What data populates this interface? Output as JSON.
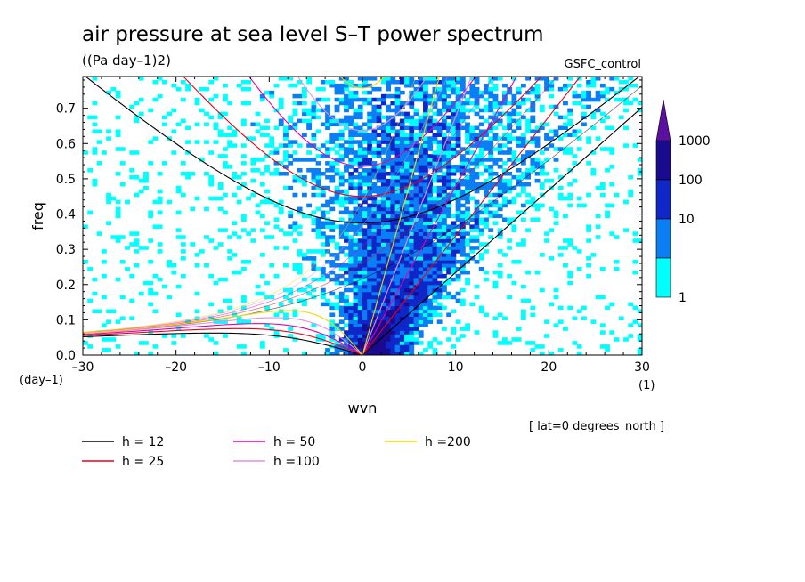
{
  "chart_data": {
    "type": "heatmap",
    "title": "air pressure at sea level S–T power spectrum",
    "units": "((Pa day–1)2)",
    "source_label": "GSFC_control",
    "xlabel": "wvn",
    "ylabel": "freq",
    "x_unit": "(1)",
    "y_unit": "(day–1)",
    "annotation": "[ lat=0 degrees_north ]",
    "xlim": [
      -30,
      30
    ],
    "ylim": [
      0,
      0.79
    ],
    "x_ticks": [
      -30,
      -20,
      -10,
      0,
      10,
      20,
      30
    ],
    "x_tick_labels": [
      "–30",
      "–20",
      "–10",
      "0",
      "10",
      "20",
      "30"
    ],
    "y_ticks": [
      0,
      0.1,
      0.2,
      0.3,
      0.4,
      0.5,
      0.6,
      0.7
    ],
    "y_tick_labels": [
      "0.0",
      "0.1",
      "0.2",
      "0.3",
      "0.4",
      "0.5",
      "0.6",
      "0.7"
    ],
    "colorbar": {
      "levels": [
        "1",
        "10",
        "100",
        "1000"
      ],
      "colors": [
        "#00ffff",
        "#0a7ff5",
        "#0f27c8",
        "#1a0a8f",
        "#5a10a0"
      ]
    },
    "legend": [
      {
        "label": "h = 12",
        "color": "#000000"
      },
      {
        "label": "h = 25",
        "color": "#e8001a"
      },
      {
        "label": "h = 50",
        "color": "#e000b0"
      },
      {
        "label": "h =100",
        "color": "#e090e0"
      },
      {
        "label": "h =200",
        "color": "#f0d800"
      }
    ],
    "dispersion_curves": {
      "equivalent_depths": [
        12,
        25,
        50,
        100,
        200
      ],
      "kelvin_branch": "positive wavenumber lines from origin",
      "inertio_gravity_minimum_freq": [
        0.37,
        0.45,
        0.53,
        0.63,
        0.75
      ],
      "rossby_max_freq": [
        0.06,
        0.075,
        0.09,
        0.105,
        0.125
      ]
    }
  }
}
